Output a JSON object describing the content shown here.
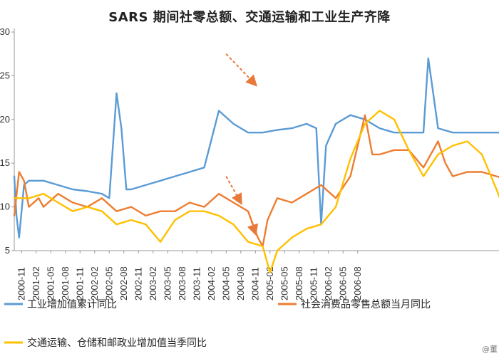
{
  "page": {
    "title": "SARS 期间社零总额、交通运输和工业生产齐降"
  },
  "chart_data": {
    "type": "line",
    "title": "SARS 期间社零总额、交通运输和工业生产齐降",
    "xlabel": "",
    "ylabel": "",
    "x_tick_labels": [
      "2000-11",
      "2001-02",
      "2001-05",
      "2001-08",
      "2001-11",
      "2002-02",
      "2002-05",
      "2002-08",
      "2002-11",
      "2003-02",
      "2003-05",
      "2003-08",
      "2003-11",
      "2004-02",
      "2004-05",
      "2004-08",
      "2004-11",
      "2005-02",
      "2005-05",
      "2005-08",
      "2005-11",
      "2006-02",
      "2006-05",
      "2006-08"
    ],
    "y_tick_labels": [
      "5",
      "10",
      "15",
      "20",
      "25",
      "30"
    ],
    "ylim": [
      5,
      30
    ],
    "legend_placement": "bottom",
    "grid": false,
    "series": [
      {
        "name": "工业增加值累计同比",
        "color": "#5b9bd5",
        "points": [
          [
            0.0,
            13.5
          ],
          [
            0.15,
            9.0
          ],
          [
            0.33,
            6.5
          ],
          [
            0.67,
            12.5
          ],
          [
            1.0,
            13.0
          ],
          [
            2.0,
            13.0
          ],
          [
            3.0,
            12.5
          ],
          [
            4.0,
            12.0
          ],
          [
            5.0,
            11.8
          ],
          [
            6.0,
            11.5
          ],
          [
            6.5,
            11.0
          ],
          [
            7.0,
            23.0
          ],
          [
            7.33,
            19.0
          ],
          [
            7.67,
            12.0
          ],
          [
            8.0,
            12.0
          ],
          [
            9.0,
            12.5
          ],
          [
            10.0,
            13.0
          ],
          [
            11.0,
            13.5
          ],
          [
            12.0,
            14.0
          ],
          [
            13.0,
            14.5
          ],
          [
            14.0,
            21.0
          ],
          [
            15.0,
            19.5
          ],
          [
            16.0,
            18.5
          ],
          [
            17.0,
            18.5
          ],
          [
            18.0,
            18.8
          ],
          [
            19.0,
            19.0
          ],
          [
            20.0,
            19.5
          ],
          [
            20.67,
            19.0
          ],
          [
            21.0,
            8.0
          ],
          [
            21.33,
            17.0
          ],
          [
            22.0,
            19.5
          ],
          [
            23.0,
            20.5
          ],
          [
            24.0,
            20.0
          ],
          [
            25.0,
            19.0
          ],
          [
            26.0,
            18.5
          ],
          [
            27.0,
            18.5
          ],
          [
            28.0,
            18.5
          ],
          [
            28.33,
            27.0
          ],
          [
            28.67,
            23.0
          ],
          [
            29.0,
            19.0
          ],
          [
            30.0,
            18.5
          ],
          [
            31.0,
            18.5
          ],
          [
            32.0,
            18.5
          ],
          [
            33.0,
            18.5
          ],
          [
            34.0,
            18.5
          ],
          [
            35.0,
            18.5
          ],
          [
            35.5,
            18.0
          ],
          [
            35.67,
            14.0
          ],
          [
            36.0,
            17.5
          ],
          [
            37.0,
            17.5
          ],
          [
            38.0,
            18.0
          ],
          [
            39.0,
            19.5
          ],
          [
            40.0,
            19.3
          ],
          [
            41.0,
            19.0
          ],
          [
            41.5,
            19.0
          ]
        ]
      },
      {
        "name": "社会消费品零售总额当月同比",
        "color": "#ed7d31",
        "points": [
          [
            0.0,
            9.0
          ],
          [
            0.33,
            14.0
          ],
          [
            0.67,
            13.0
          ],
          [
            1.0,
            10.0
          ],
          [
            1.67,
            11.0
          ],
          [
            2.0,
            10.0
          ],
          [
            3.0,
            11.5
          ],
          [
            4.0,
            10.5
          ],
          [
            5.0,
            10.0
          ],
          [
            6.0,
            11.0
          ],
          [
            7.0,
            9.5
          ],
          [
            8.0,
            10.0
          ],
          [
            9.0,
            9.0
          ],
          [
            10.0,
            9.5
          ],
          [
            11.0,
            9.5
          ],
          [
            12.0,
            10.5
          ],
          [
            13.0,
            10.0
          ],
          [
            14.0,
            11.5
          ],
          [
            15.0,
            10.5
          ],
          [
            16.0,
            9.5
          ],
          [
            16.67,
            6.5
          ],
          [
            17.0,
            5.5
          ],
          [
            17.33,
            8.5
          ],
          [
            18.0,
            11.0
          ],
          [
            19.0,
            10.5
          ],
          [
            20.0,
            11.5
          ],
          [
            21.0,
            12.5
          ],
          [
            22.0,
            11.0
          ],
          [
            23.0,
            13.5
          ],
          [
            24.0,
            20.5
          ],
          [
            24.5,
            16.0
          ],
          [
            25.0,
            16.0
          ],
          [
            26.0,
            16.5
          ],
          [
            27.0,
            16.5
          ],
          [
            28.0,
            14.5
          ],
          [
            29.0,
            17.5
          ],
          [
            29.5,
            15.0
          ],
          [
            30.0,
            13.5
          ],
          [
            31.0,
            14.0
          ],
          [
            32.0,
            14.0
          ],
          [
            33.0,
            13.5
          ],
          [
            34.0,
            13.0
          ],
          [
            35.0,
            14.5
          ],
          [
            35.5,
            17.5
          ],
          [
            36.0,
            11.0
          ],
          [
            37.0,
            15.0
          ],
          [
            38.0,
            15.5
          ],
          [
            39.0,
            15.5
          ],
          [
            40.0,
            15.0
          ],
          [
            41.0,
            16.0
          ],
          [
            41.5,
            16.0
          ]
        ]
      },
      {
        "name": "交通运输、仓储和邮政业增加值当季同比",
        "color": "#ffc000",
        "points": [
          [
            0.0,
            11.0
          ],
          [
            1.0,
            11.0
          ],
          [
            2.0,
            11.5
          ],
          [
            3.0,
            10.5
          ],
          [
            4.0,
            9.5
          ],
          [
            5.0,
            10.0
          ],
          [
            6.0,
            9.5
          ],
          [
            7.0,
            8.0
          ],
          [
            8.0,
            8.5
          ],
          [
            9.0,
            8.0
          ],
          [
            10.0,
            6.0
          ],
          [
            11.0,
            8.5
          ],
          [
            12.0,
            9.5
          ],
          [
            13.0,
            9.5
          ],
          [
            14.0,
            9.0
          ],
          [
            15.0,
            8.0
          ],
          [
            16.0,
            6.0
          ],
          [
            17.0,
            5.5
          ],
          [
            17.5,
            2.5
          ],
          [
            18.0,
            5.0
          ],
          [
            19.0,
            6.5
          ],
          [
            20.0,
            7.5
          ],
          [
            21.0,
            8.0
          ],
          [
            22.0,
            10.0
          ],
          [
            23.0,
            15.5
          ],
          [
            24.0,
            19.5
          ],
          [
            25.0,
            21.0
          ],
          [
            26.0,
            20.0
          ],
          [
            27.0,
            16.5
          ],
          [
            28.0,
            13.5
          ],
          [
            29.0,
            16.0
          ],
          [
            30.0,
            17.0
          ],
          [
            31.0,
            17.5
          ],
          [
            32.0,
            16.0
          ],
          [
            33.0,
            12.0
          ],
          [
            34.0,
            7.5
          ],
          [
            35.0,
            5.0
          ],
          [
            35.5,
            6.0
          ],
          [
            36.0,
            10.0
          ],
          [
            37.0,
            10.5
          ],
          [
            38.0,
            8.0
          ],
          [
            39.0,
            7.0
          ],
          [
            40.0,
            10.0
          ],
          [
            41.0,
            11.5
          ],
          [
            41.5,
            12.0
          ]
        ]
      }
    ],
    "annotations": [
      {
        "type": "arrow",
        "style": "dashed",
        "color": "#e8793a",
        "from": [
          14.5,
          27.5
        ],
        "to": [
          16.5,
          24.0
        ]
      },
      {
        "type": "arrow",
        "style": "dashed",
        "color": "#e8793a",
        "from": [
          14.5,
          13.5
        ],
        "to": [
          15.5,
          10.5
        ]
      },
      {
        "type": "arrow",
        "style": "dashed",
        "color": "#e8793a",
        "from": [
          16.0,
          9.5
        ],
        "to": [
          16.5,
          7.0
        ]
      }
    ]
  },
  "legend": {
    "items": [
      {
        "label": "工业增加值累计同比",
        "color": "#5b9bd5"
      },
      {
        "label": "社会消费品零售总额当月同比",
        "color": "#ed7d31"
      },
      {
        "label": "交通运输、仓储和邮政业增加值当季同比",
        "color": "#ffc000"
      }
    ]
  },
  "watermark": {
    "text": "@董"
  }
}
